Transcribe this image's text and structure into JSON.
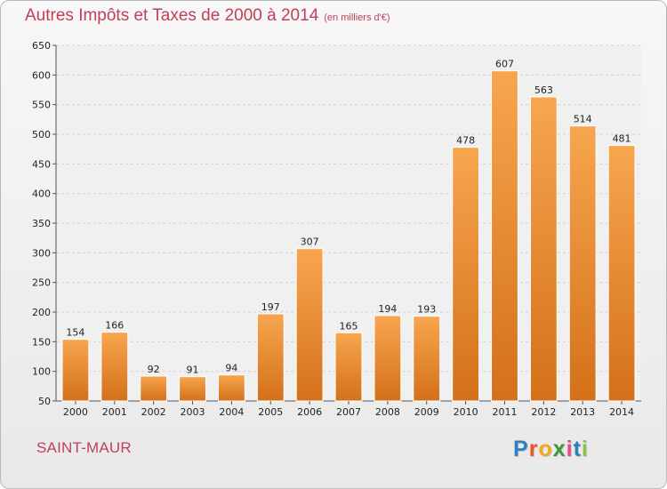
{
  "header": {
    "title": "Autres Impôts et Taxes de 2000 à 2014",
    "unit": "(en milliers d'€)"
  },
  "footer": {
    "place": "SAINT-MAUR",
    "brand": [
      "P",
      "r",
      "o",
      "x",
      "i",
      "t",
      "i"
    ],
    "brand_colors": [
      "#2d7fc1",
      "#e8552b",
      "#f5a623",
      "#3a9a3a",
      "#e84c7a",
      "#2d7fc1",
      "#8bc34a"
    ]
  },
  "colors": {
    "bar_top": "#f7a64f",
    "bar_bottom": "#d4701a",
    "grid": "#d2d2d2",
    "axis": "#555555",
    "title": "#c0405a"
  },
  "chart_data": {
    "type": "bar",
    "categories": [
      "2000",
      "2001",
      "2002",
      "2003",
      "2004",
      "2005",
      "2006",
      "2007",
      "2008",
      "2009",
      "2010",
      "2011",
      "2012",
      "2013",
      "2014"
    ],
    "values": [
      154,
      166,
      92,
      91,
      94,
      197,
      307,
      165,
      194,
      193,
      478,
      607,
      563,
      514,
      481
    ],
    "ylim": [
      50,
      650
    ],
    "yticks": [
      50,
      100,
      150,
      200,
      250,
      300,
      350,
      400,
      450,
      500,
      550,
      600,
      650
    ],
    "grid": true,
    "title": "Autres Impôts et Taxes de 2000 à 2014",
    "xlabel": "",
    "ylabel": ""
  }
}
